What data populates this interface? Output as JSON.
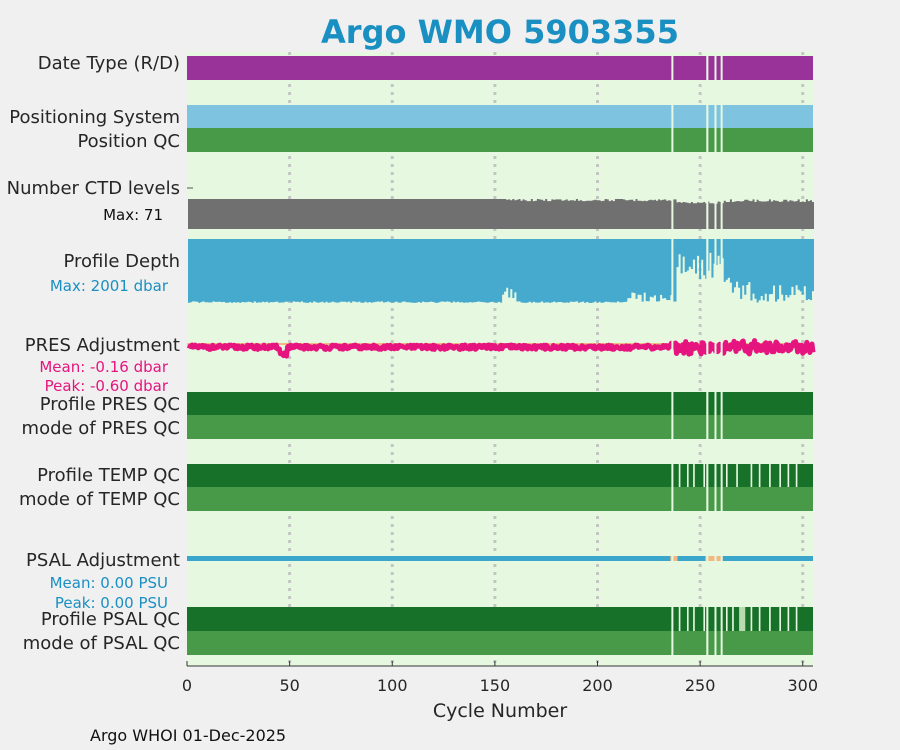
{
  "chart_data": {
    "type": "timeline",
    "title": "Argo WMO 5903355",
    "xlabel": "Cycle Number",
    "xlim": [
      0,
      305
    ],
    "xticks": [
      0,
      50,
      100,
      150,
      200,
      250,
      300
    ],
    "footer": "Argo WHOI 01-Dec-2025",
    "gaps": [
      [
        236,
        237
      ],
      [
        253,
        255
      ],
      [
        257,
        258
      ],
      [
        260,
        261
      ]
    ],
    "rows": {
      "date_type": {
        "label": "Date Type (R/D)",
        "color": "#993399"
      },
      "positioning": {
        "label": "Positioning System",
        "color": "#7ec4e0"
      },
      "position_qc": {
        "label": "Position QC",
        "color": "#489a48"
      },
      "ctd_levels": {
        "label": "Number CTD levels",
        "sub": "Max: 71",
        "max": 71,
        "color": "#707070",
        "sub_color": "#111111"
      },
      "profile_depth": {
        "label": "Profile Depth",
        "sub": "Max: 2001 dbar",
        "max_dbar": 2001,
        "color": "#46aace",
        "sub_color": "#1a8fc2"
      },
      "pres_adj": {
        "label": "PRES Adjustment",
        "mean_text": "Mean: -0.16 dbar",
        "peak_text": "Peak: -0.60 dbar",
        "mean": -0.16,
        "peak": -0.6,
        "color": "#e6147e",
        "ref_color": "#f2b880"
      },
      "profile_pres_qc": {
        "label": "Profile PRES QC",
        "color": "#187128"
      },
      "mode_pres_qc": {
        "label": "mode of PRES QC",
        "color": "#489a48"
      },
      "profile_temp_qc": {
        "label": "Profile TEMP QC",
        "color": "#187128"
      },
      "mode_temp_qc": {
        "label": "mode of TEMP QC",
        "color": "#489a48"
      },
      "psal_adj": {
        "label": "PSAL Adjustment",
        "mean_text": "Mean: 0.00 PSU",
        "peak_text": "Peak: 0.00 PSU",
        "mean": 0.0,
        "peak": 0.0,
        "color": "#3aa6cc",
        "sub_color": "#1a8fc2",
        "ref_color": "#f2b880"
      },
      "profile_psal_qc": {
        "label": "Profile PSAL QC",
        "color": "#187128"
      },
      "mode_psal_qc": {
        "label": "mode of PSAL QC",
        "color": "#489a48"
      }
    },
    "temp_qc_dips": [
      240,
      244,
      247,
      252,
      263,
      268,
      275,
      279,
      284,
      289,
      293,
      297
    ],
    "psal_qc_dips": [
      240,
      244,
      247,
      252,
      263,
      266,
      275,
      279,
      284,
      289,
      293,
      297
    ],
    "psal_qc_light_block": [
      269,
      272
    ],
    "colors": {
      "plot_bg": "#e6f8e0",
      "page_bg": "#f0f0f0",
      "title": "#1a8fc2",
      "grid": "#c4c4c4",
      "qc_light": "#b8dcb0"
    }
  }
}
